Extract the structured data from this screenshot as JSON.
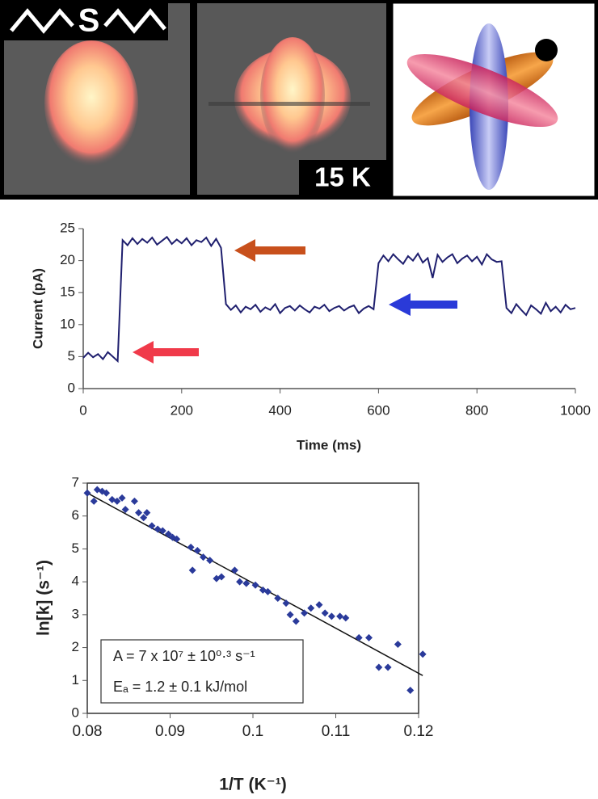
{
  "panels": {
    "label_left": "S",
    "label_right": "15 K"
  },
  "chart_data": [
    {
      "type": "line",
      "xlabel": "Time (ms)",
      "ylabel": "Current (pA)",
      "xlim": [
        0,
        1000
      ],
      "ylim": [
        0,
        25
      ],
      "xticks": [
        0,
        200,
        400,
        600,
        800,
        1000
      ],
      "yticks": [
        0,
        5,
        10,
        15,
        20,
        25
      ],
      "x": [
        0,
        10,
        20,
        30,
        40,
        50,
        60,
        70,
        80,
        90,
        100,
        110,
        120,
        130,
        140,
        150,
        160,
        170,
        180,
        190,
        200,
        210,
        220,
        230,
        240,
        250,
        260,
        270,
        280,
        290,
        300,
        310,
        320,
        330,
        340,
        350,
        360,
        370,
        380,
        390,
        400,
        410,
        420,
        430,
        440,
        450,
        460,
        470,
        480,
        490,
        500,
        510,
        520,
        530,
        540,
        550,
        560,
        570,
        580,
        590,
        600,
        610,
        620,
        630,
        640,
        650,
        660,
        670,
        680,
        690,
        700,
        710,
        720,
        730,
        740,
        750,
        760,
        770,
        780,
        790,
        800,
        810,
        820,
        830,
        840,
        850,
        860,
        870,
        880,
        890,
        900,
        910,
        920,
        930,
        940,
        950,
        960,
        970,
        980,
        990,
        1000
      ],
      "series": [
        {
          "color": "#1f1f6e",
          "values": [
            4.8,
            5.6,
            4.9,
            5.4,
            4.6,
            5.7,
            5.0,
            4.3,
            23.2,
            22.4,
            23.5,
            22.6,
            23.4,
            22.8,
            23.6,
            22.5,
            23.1,
            23.7,
            22.6,
            23.3,
            22.7,
            23.5,
            22.4,
            23.2,
            22.9,
            23.6,
            22.3,
            23.4,
            22.0,
            13.2,
            12.3,
            13.0,
            11.9,
            12.8,
            12.4,
            13.1,
            12.0,
            12.7,
            12.3,
            13.2,
            11.8,
            12.6,
            12.9,
            12.2,
            13.0,
            12.4,
            11.9,
            12.8,
            12.5,
            13.1,
            12.1,
            12.6,
            12.9,
            12.2,
            12.7,
            13.0,
            11.8,
            12.5,
            12.9,
            12.4,
            19.6,
            20.8,
            19.9,
            21.0,
            20.2,
            19.5,
            20.7,
            20.0,
            21.1,
            19.7,
            20.4,
            17.3,
            20.9,
            19.8,
            20.5,
            21.0,
            19.6,
            20.3,
            20.8,
            19.9,
            20.6,
            19.4,
            21.0,
            20.2,
            19.8,
            19.9,
            12.6,
            11.8,
            13.2,
            12.3,
            11.5,
            13.0,
            12.4,
            11.7,
            13.4,
            12.1,
            12.8,
            11.9,
            13.1,
            12.4,
            12.6
          ]
        }
      ]
    },
    {
      "type": "scatter",
      "xlabel": "1/T (K⁻¹)",
      "ylabel": "ln[k] (s⁻¹)",
      "xlim": [
        0.08,
        0.12
      ],
      "ylim": [
        0,
        7
      ],
      "xticks": [
        0.08,
        0.09,
        0.1,
        0.11,
        0.12
      ],
      "yticks": [
        0,
        1,
        2,
        3,
        4,
        5,
        6,
        7
      ],
      "series": [
        {
          "color": "#2a3a9a",
          "x": [
            0.08,
            0.0808,
            0.0812,
            0.0818,
            0.0823,
            0.083,
            0.0836,
            0.0842,
            0.0846,
            0.0857,
            0.0862,
            0.0868,
            0.0872,
            0.0878,
            0.0885,
            0.0891,
            0.0898,
            0.0903,
            0.0908,
            0.0927,
            0.0925,
            0.0933,
            0.094,
            0.0948,
            0.0956,
            0.0962,
            0.0978,
            0.0984,
            0.0992,
            0.1003,
            0.1012,
            0.1018,
            0.103,
            0.104,
            0.1045,
            0.1052,
            0.1062,
            0.107,
            0.108,
            0.1087,
            0.1095,
            0.1105,
            0.1112,
            0.1128,
            0.114,
            0.1152,
            0.1163,
            0.1175,
            0.119,
            0.1205
          ],
          "values": [
            6.7,
            6.45,
            6.8,
            6.75,
            6.7,
            6.5,
            6.45,
            6.55,
            6.2,
            6.45,
            6.1,
            5.95,
            6.1,
            5.7,
            5.6,
            5.55,
            5.45,
            5.35,
            5.3,
            4.35,
            5.05,
            4.95,
            4.75,
            4.65,
            4.1,
            4.15,
            4.35,
            4.0,
            3.95,
            3.9,
            3.75,
            3.7,
            3.5,
            3.35,
            3.0,
            2.8,
            3.05,
            3.2,
            3.3,
            3.05,
            2.95,
            2.95,
            2.9,
            2.3,
            2.3,
            1.4,
            1.4,
            2.1,
            0.7,
            1.8
          ]
        }
      ],
      "fit": {
        "color": "#111111",
        "x": [
          0.08,
          0.1205
        ],
        "values": [
          6.7,
          1.15
        ]
      },
      "annotations": [
        "A = 7 x 10⁷ ± 10⁰·³ s⁻¹",
        "Eₐ = 1.2 ± 0.1 kJ/mol"
      ]
    }
  ]
}
